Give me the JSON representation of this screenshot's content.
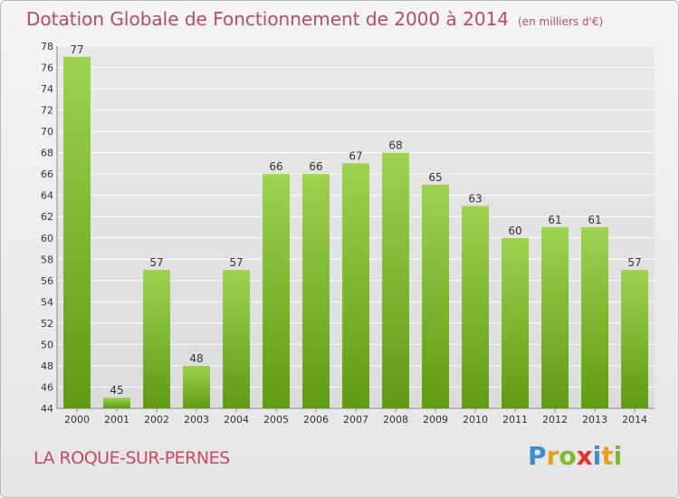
{
  "title": "Dotation Globale de Fonctionnement de 2000 à 2014",
  "unit": "(en milliers d'€)",
  "commune": "LA ROQUE-SUR-PERNES",
  "logo": {
    "text": "Proxiti",
    "letters": [
      {
        "ch": "P",
        "color": "#3a8fd1"
      },
      {
        "ch": "r",
        "color": "#e8a21a"
      },
      {
        "ch": "o",
        "color": "#7dbb2b"
      },
      {
        "ch": "x",
        "color": "#e2322a"
      },
      {
        "ch": "i",
        "color": "#3a8fd1"
      },
      {
        "ch": "t",
        "color": "#e8a21a"
      },
      {
        "ch": "i",
        "color": "#7dbb2b"
      }
    ]
  },
  "colors": {
    "bar_top": "#9ed24f",
    "bar_bottom": "#5f9b12",
    "title": "#b84a6d",
    "grid": "#ffffff"
  },
  "chart_data": {
    "type": "bar",
    "title": "Dotation Globale de Fonctionnement de 2000 à 2014",
    "xlabel": "",
    "ylabel": "",
    "ylim": [
      44,
      78
    ],
    "yticks": [
      44,
      46,
      48,
      50,
      52,
      54,
      56,
      58,
      60,
      62,
      64,
      66,
      68,
      70,
      72,
      74,
      76,
      78
    ],
    "grid": true,
    "categories": [
      "2000",
      "2001",
      "2002",
      "2003",
      "2004",
      "2005",
      "2006",
      "2007",
      "2008",
      "2009",
      "2010",
      "2011",
      "2012",
      "2013",
      "2014"
    ],
    "values": [
      77,
      45,
      57,
      48,
      57,
      66,
      66,
      67,
      68,
      65,
      63,
      60,
      61,
      61,
      57
    ]
  }
}
